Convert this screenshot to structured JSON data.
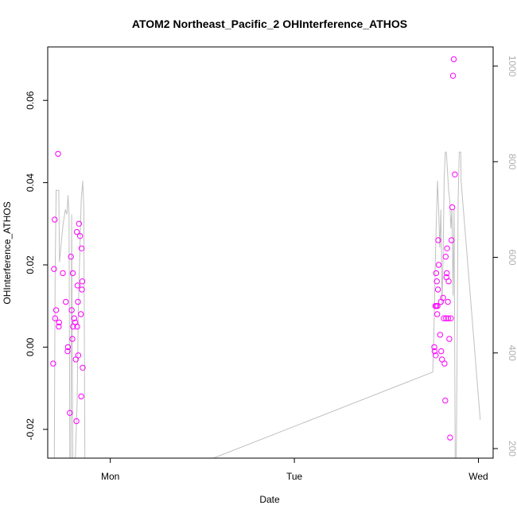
{
  "chart_data": {
    "type": "scatter",
    "title": "ATOM2 Northeast_Pacific_2 OHInterference_ATHOS",
    "xlabel": "Date",
    "ylabel": "OHInterference_ATHOS",
    "x_ticks": [
      {
        "label": "Mon",
        "value": 1.0
      },
      {
        "label": "Tue",
        "value": 2.0
      },
      {
        "label": "Wed",
        "value": 3.0
      }
    ],
    "xlim": [
      0.66,
      3.08
    ],
    "ylim": [
      -0.027,
      0.073
    ],
    "y_ticks": [
      -0.02,
      0.0,
      0.02,
      0.04,
      0.06
    ],
    "y_tick_labels": [
      "-0.02",
      "0.00",
      "0.02",
      "0.04",
      "0.06"
    ],
    "y2_ticks": [
      200,
      400,
      600,
      800,
      1000
    ],
    "y2_tick_labels": [
      "200",
      "400",
      "600",
      "800",
      "1000"
    ],
    "y2lim": [
      1040,
      180
    ],
    "series": [
      {
        "color": "#ff00ff",
        "marker": "open-circle",
        "x": [
          0.69,
          0.694,
          0.698,
          0.7,
          0.706,
          0.716,
          0.72,
          0.722,
          0.742,
          0.758,
          0.768,
          0.77,
          0.78,
          0.786,
          0.79,
          0.794,
          0.796,
          0.798,
          0.804,
          0.81,
          0.812,
          0.816,
          0.818,
          0.82,
          0.822,
          0.824,
          0.826,
          0.83,
          0.836,
          0.84,
          0.842,
          0.844,
          0.846,
          0.848,
          0.85,
          2.76,
          2.762,
          2.766,
          2.768,
          2.77,
          2.772,
          2.774,
          2.776,
          2.778,
          2.78,
          2.782,
          2.784,
          2.792,
          2.796,
          2.798,
          2.802,
          2.808,
          2.812,
          2.816,
          2.82,
          2.822,
          2.824,
          2.826,
          2.828,
          2.83,
          2.834,
          2.836,
          2.838,
          2.842,
          2.846,
          2.85,
          2.854,
          2.858,
          2.862,
          2.866,
          2.872
        ],
        "y": [
          -0.004,
          0.019,
          0.031,
          0.007,
          0.009,
          0.047,
          0.005,
          0.006,
          0.018,
          0.011,
          -0.001,
          0.0,
          -0.016,
          0.022,
          0.009,
          0.002,
          0.018,
          0.005,
          0.007,
          0.006,
          -0.003,
          -0.018,
          0.028,
          0.005,
          0.015,
          0.011,
          -0.002,
          0.03,
          0.027,
          0.008,
          -0.012,
          0.024,
          0.014,
          0.016,
          -0.005,
          0.0,
          -0.001,
          0.01,
          -0.002,
          0.018,
          0.01,
          0.016,
          0.008,
          0.01,
          0.014,
          0.026,
          0.02,
          0.003,
          0.011,
          -0.001,
          -0.003,
          0.012,
          0.007,
          -0.004,
          -0.013,
          0.022,
          0.007,
          0.017,
          0.018,
          0.024,
          0.011,
          0.007,
          0.016,
          0.002,
          -0.022,
          0.007,
          0.026,
          0.034,
          0.066,
          0.07,
          0.042
        ]
      },
      {
        "color": "#c0c0c0",
        "type": "line",
        "axis": "right",
        "x": [
          0.69,
          0.696,
          0.7,
          0.706,
          0.716,
          0.72,
          0.724,
          0.736,
          0.744,
          0.756,
          0.764,
          0.77,
          0.776,
          0.78,
          0.786,
          0.79,
          0.796,
          0.802,
          0.81,
          0.82,
          0.826,
          0.834,
          0.842,
          0.85,
          0.856,
          0.862,
          1.56,
          2.752,
          2.758,
          2.764,
          2.77,
          2.778,
          2.784,
          2.79,
          2.796,
          2.802,
          2.808,
          2.814,
          2.82,
          2.826,
          2.832,
          2.838,
          2.844,
          2.85,
          2.856,
          2.862,
          2.868,
          2.874,
          2.88,
          2.886,
          2.89,
          2.896,
          2.9,
          2.904,
          2.906,
          3.01
        ],
        "y": [
          180,
          180,
          560,
          740,
          740,
          740,
          590,
          640,
          670,
          700,
          690,
          730,
          690,
          180,
          180,
          690,
          180,
          180,
          180,
          300,
          480,
          610,
          720,
          760,
          700,
          180,
          180,
          360,
          440,
          560,
          660,
          760,
          700,
          620,
          700,
          500,
          600,
          760,
          820,
          820,
          780,
          740,
          720,
          660,
          700,
          520,
          700,
          180,
          180,
          500,
          720,
          820,
          820,
          820,
          760,
          260
        ]
      }
    ]
  }
}
